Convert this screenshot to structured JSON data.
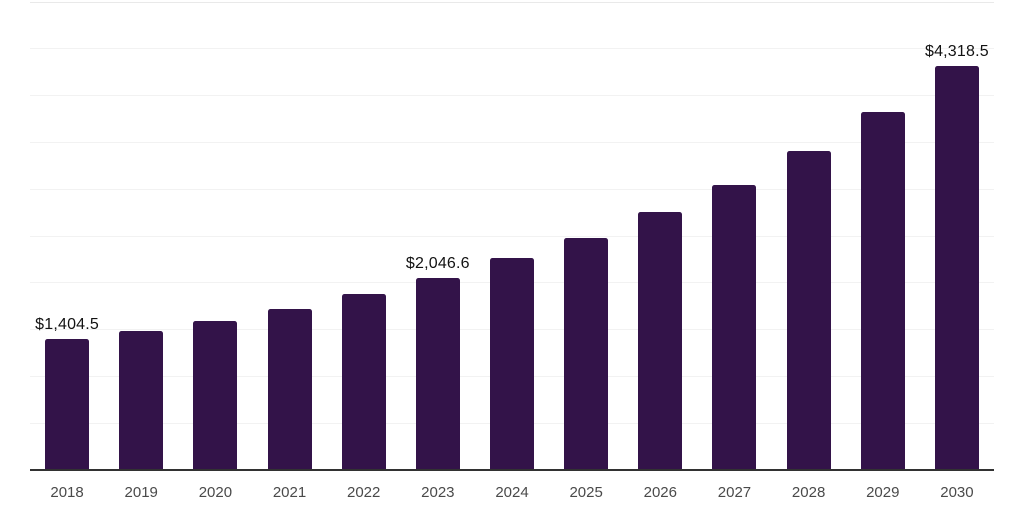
{
  "page": {
    "background_color": "#ffffff"
  },
  "chart_data": {
    "type": "bar",
    "title": "",
    "xlabel": "",
    "ylabel": "",
    "categories": [
      "2018",
      "2019",
      "2020",
      "2021",
      "2022",
      "2023",
      "2024",
      "2025",
      "2026",
      "2027",
      "2028",
      "2029",
      "2030"
    ],
    "values": [
      1404.5,
      1490,
      1590,
      1720,
      1880,
      2046.6,
      2260,
      2480,
      2760,
      3050,
      3410,
      3830,
      4318.5
    ],
    "data_labels": {
      "2018": "$1,404.5",
      "2023": "$2,046.6",
      "2030": "$4,318.5"
    },
    "ylim": [
      0,
      5000
    ],
    "grid": {
      "horizontal": true,
      "interval": 500,
      "color": "#f2f2f2",
      "top_line_color": "#e9e9e9"
    },
    "legend_position": "none",
    "bar_color": "#331349",
    "axis_line_color": "#323232",
    "tick_label_color": "#4a4a4a",
    "value_label_color": "#121212"
  }
}
